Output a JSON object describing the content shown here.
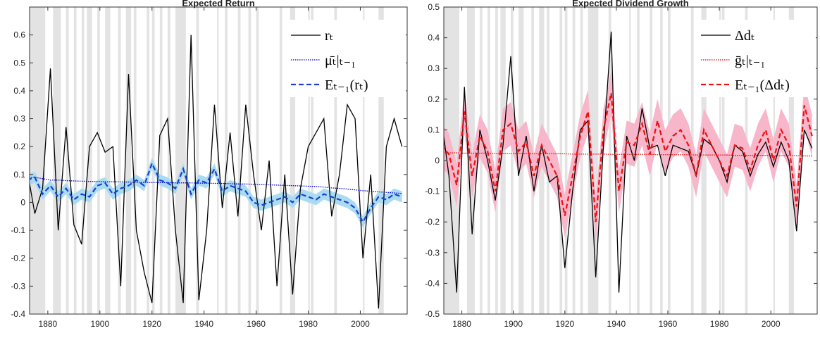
{
  "chart_data": [
    {
      "type": "line",
      "title": "Expected Return",
      "x": [
        1872,
        1875,
        1878,
        1881,
        1884,
        1887,
        1890,
        1893,
        1896,
        1899,
        1902,
        1905,
        1908,
        1911,
        1914,
        1917,
        1920,
        1923,
        1926,
        1929,
        1932,
        1935,
        1938,
        1941,
        1944,
        1947,
        1950,
        1953,
        1956,
        1959,
        1962,
        1965,
        1968,
        1971,
        1974,
        1977,
        1980,
        1983,
        1986,
        1989,
        1992,
        1995,
        1998,
        2001,
        2004,
        2007,
        2010,
        2013,
        2016
      ],
      "xlim": [
        1873,
        2018
      ],
      "xticks": [
        1880,
        1900,
        1920,
        1940,
        1960,
        1980,
        2000
      ],
      "ylim": [
        -0.4,
        0.7
      ],
      "yticks": [
        -0.4,
        -0.3,
        -0.2,
        -0.1,
        0,
        0.1,
        0.2,
        0.3,
        0.4,
        0.5,
        0.6
      ],
      "shaded_periods": [
        [
          1873,
          1879
        ],
        [
          1882,
          1885
        ],
        [
          1887,
          1888
        ],
        [
          1890,
          1891
        ],
        [
          1893,
          1894
        ],
        [
          1895,
          1897
        ],
        [
          1899,
          1900
        ],
        [
          1902,
          1904
        ],
        [
          1907,
          1908
        ],
        [
          1910,
          1912
        ],
        [
          1913,
          1914
        ],
        [
          1918,
          1919
        ],
        [
          1920,
          1921
        ],
        [
          1923,
          1924
        ],
        [
          1926,
          1927
        ],
        [
          1929,
          1933
        ],
        [
          1937,
          1938
        ],
        [
          1945,
          1945.6
        ],
        [
          1948,
          1949
        ],
        [
          1953,
          1954
        ],
        [
          1957,
          1958
        ],
        [
          1960,
          1961
        ],
        [
          1969,
          1970
        ],
        [
          1973,
          1975
        ],
        [
          1980,
          1980.6
        ],
        [
          1981,
          1982
        ],
        [
          1990,
          1991
        ],
        [
          2001,
          2001.6
        ],
        [
          2007,
          2009
        ]
      ],
      "shade_color": "#e3e3e3",
      "legend": "upper right",
      "series": [
        {
          "name": "rₜ",
          "color": "#000000",
          "style": "solid",
          "values": [
            0.12,
            -0.04,
            0.05,
            0.48,
            -0.1,
            0.27,
            -0.08,
            -0.15,
            0.2,
            0.25,
            0.18,
            0.2,
            -0.3,
            0.46,
            -0.1,
            -0.25,
            -0.36,
            0.24,
            0.3,
            -0.1,
            -0.36,
            0.6,
            -0.35,
            -0.1,
            0.35,
            -0.02,
            0.25,
            -0.05,
            0.35,
            0.1,
            -0.1,
            0.15,
            -0.3,
            0.1,
            -0.33,
            0.05,
            0.2,
            0.25,
            0.3,
            -0.05,
            0.1,
            0.35,
            0.3,
            -0.2,
            0.1,
            -0.38,
            0.2,
            0.3,
            0.2
          ]
        },
        {
          "name": "μ̄ₜ|ₜ₋₁",
          "color": "#0000cc",
          "style": "dotted",
          "values": [
            0.09,
            0.09,
            0.085,
            0.08,
            0.08,
            0.078,
            0.077,
            0.076,
            0.075,
            0.075,
            0.074,
            0.074,
            0.074,
            0.073,
            0.072,
            0.072,
            0.071,
            0.071,
            0.071,
            0.07,
            0.07,
            0.07,
            0.069,
            0.069,
            0.068,
            0.068,
            0.067,
            0.066,
            0.066,
            0.065,
            0.064,
            0.063,
            0.062,
            0.061,
            0.06,
            0.059,
            0.058,
            0.057,
            0.055,
            0.052,
            0.05,
            0.048,
            0.045,
            0.042,
            0.04,
            0.038,
            0.036,
            0.034,
            0.032
          ]
        },
        {
          "name": "Eₜ₋₁(rₜ)",
          "color": "#1f3fd0",
          "style": "dashed",
          "band_color": "#a9dcf2",
          "band_error": 0.02,
          "values": [
            0.08,
            0.09,
            0.03,
            0.06,
            0.02,
            0.05,
            0.01,
            0.03,
            0.02,
            0.06,
            0.07,
            0.03,
            0.05,
            0.06,
            0.08,
            0.06,
            0.14,
            0.08,
            0.07,
            0.05,
            0.12,
            0.03,
            0.08,
            0.07,
            0.12,
            0.04,
            0.06,
            0.05,
            0.04,
            0.0,
            -0.01,
            0.0,
            0.01,
            0.02,
            0.0,
            0.03,
            0.02,
            0.01,
            0.03,
            0.02,
            0.01,
            0.0,
            -0.02,
            -0.07,
            -0.02,
            0.02,
            0.01,
            0.03,
            0.02
          ]
        }
      ]
    },
    {
      "type": "line",
      "title": "Expected Dividend Growth",
      "x": [
        1872,
        1875,
        1878,
        1881,
        1884,
        1887,
        1890,
        1893,
        1896,
        1899,
        1902,
        1905,
        1908,
        1911,
        1914,
        1917,
        1920,
        1923,
        1926,
        1929,
        1932,
        1935,
        1938,
        1941,
        1944,
        1947,
        1950,
        1953,
        1956,
        1959,
        1962,
        1965,
        1968,
        1971,
        1974,
        1977,
        1980,
        1983,
        1986,
        1989,
        1992,
        1995,
        1998,
        2001,
        2004,
        2007,
        2010,
        2013,
        2016
      ],
      "xlim": [
        1873,
        2018
      ],
      "xticks": [
        1880,
        1900,
        1920,
        1940,
        1960,
        1980,
        2000
      ],
      "ylim": [
        -0.5,
        0.5
      ],
      "yticks": [
        -0.5,
        -0.4,
        -0.3,
        -0.2,
        -0.1,
        0,
        0.1,
        0.2,
        0.3,
        0.4,
        0.5
      ],
      "shaded_periods": [
        [
          1873,
          1879
        ],
        [
          1882,
          1885
        ],
        [
          1887,
          1888
        ],
        [
          1890,
          1891
        ],
        [
          1893,
          1894
        ],
        [
          1895,
          1897
        ],
        [
          1899,
          1900
        ],
        [
          1902,
          1904
        ],
        [
          1907,
          1908
        ],
        [
          1910,
          1912
        ],
        [
          1913,
          1914
        ],
        [
          1918,
          1919
        ],
        [
          1920,
          1921
        ],
        [
          1923,
          1924
        ],
        [
          1926,
          1927
        ],
        [
          1929,
          1933
        ],
        [
          1937,
          1938
        ],
        [
          1945,
          1945.6
        ],
        [
          1948,
          1949
        ],
        [
          1953,
          1954
        ],
        [
          1957,
          1958
        ],
        [
          1960,
          1961
        ],
        [
          1969,
          1970
        ],
        [
          1973,
          1975
        ],
        [
          1980,
          1980.6
        ],
        [
          1981,
          1982
        ],
        [
          1990,
          1991
        ],
        [
          2001,
          2001.6
        ],
        [
          2007,
          2009
        ]
      ],
      "shade_color": "#e3e3e3",
      "legend": "upper right",
      "series": [
        {
          "name": "Δdₜ",
          "color": "#000000",
          "style": "solid",
          "values": [
            0.14,
            -0.05,
            -0.43,
            0.24,
            -0.24,
            0.1,
            0.0,
            -0.13,
            0.05,
            0.34,
            -0.05,
            0.08,
            -0.1,
            0.05,
            -0.07,
            -0.05,
            -0.35,
            -0.1,
            0.1,
            0.13,
            -0.38,
            0.05,
            0.42,
            -0.43,
            0.08,
            0.0,
            0.17,
            0.04,
            0.05,
            -0.05,
            0.05,
            0.04,
            0.03,
            -0.05,
            0.07,
            0.05,
            0.0,
            -0.07,
            0.05,
            0.03,
            -0.05,
            0.02,
            0.06,
            -0.02,
            0.06,
            0.0,
            -0.23,
            0.1,
            0.04
          ]
        },
        {
          "name": "ḡₜ|ₜ₋₁",
          "color": "#dd0000",
          "style": "dotted",
          "values": [
            0.025,
            0.025,
            0.025,
            0.024,
            0.024,
            0.024,
            0.024,
            0.023,
            0.023,
            0.023,
            0.023,
            0.023,
            0.022,
            0.022,
            0.022,
            0.022,
            0.022,
            0.021,
            0.021,
            0.021,
            0.021,
            0.021,
            0.02,
            0.02,
            0.02,
            0.02,
            0.02,
            0.02,
            0.019,
            0.019,
            0.019,
            0.019,
            0.019,
            0.018,
            0.018,
            0.018,
            0.018,
            0.018,
            0.017,
            0.017,
            0.017,
            0.017,
            0.017,
            0.016,
            0.016,
            0.016,
            0.016,
            0.015,
            0.015
          ]
        },
        {
          "name": "Eₜ₋₁(Δdₜ)",
          "color": "#ee1111",
          "style": "dashed",
          "band_color": "#f7b6c9",
          "band_error": 0.07,
          "values": [
            0.05,
            0.02,
            -0.08,
            0.16,
            -0.05,
            0.08,
            0.03,
            -0.1,
            0.1,
            0.12,
            0.03,
            0.06,
            -0.05,
            0.05,
            0.0,
            -0.05,
            -0.18,
            -0.05,
            0.08,
            0.16,
            -0.2,
            0.1,
            0.22,
            -0.1,
            0.06,
            0.05,
            0.12,
            0.02,
            0.13,
            0.03,
            0.08,
            0.1,
            0.05,
            -0.05,
            0.1,
            0.05,
            0.0,
            -0.05,
            0.05,
            0.04,
            -0.03,
            0.05,
            0.1,
            0.0,
            0.1,
            0.05,
            -0.15,
            0.18,
            0.08
          ]
        }
      ]
    }
  ]
}
